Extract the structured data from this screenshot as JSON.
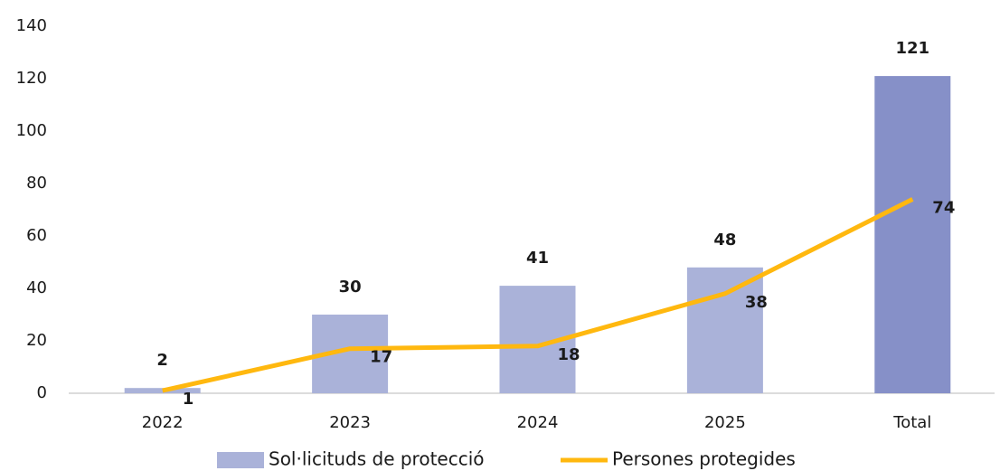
{
  "chart_data": {
    "type": "bar_line",
    "categories": [
      "2022",
      "2023",
      "2024",
      "2025",
      "Total"
    ],
    "series": [
      {
        "name": "Sol·licituds de protecció",
        "type": "bar",
        "color": "#aab2d9",
        "colors": [
          "#aab2d9",
          "#aab2d9",
          "#aab2d9",
          "#aab2d9",
          "#8690c8"
        ],
        "values": [
          2,
          30,
          41,
          48,
          121
        ]
      },
      {
        "name": "Persones protegides",
        "type": "line",
        "color": "#ffb80f",
        "values": [
          1,
          17,
          18,
          38,
          74
        ]
      }
    ],
    "ylim": [
      0,
      140
    ],
    "yticks": [
      0,
      20,
      40,
      60,
      80,
      100,
      120,
      140
    ],
    "legend": "bottom"
  }
}
